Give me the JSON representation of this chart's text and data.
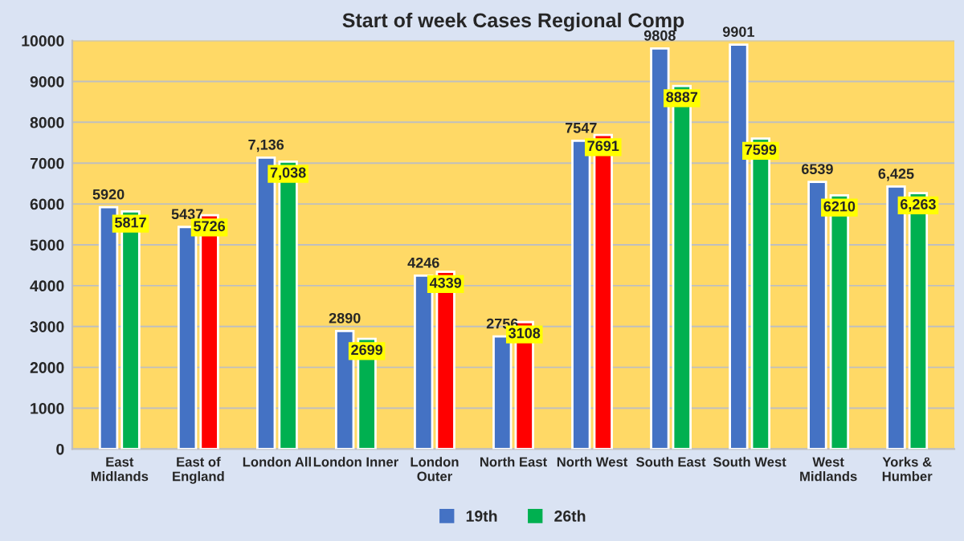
{
  "chart_data": {
    "type": "bar",
    "title": "Start of week Cases Regional Comp",
    "categories": [
      "East\nMidlands",
      "East of\nEngland",
      "London All",
      "London Inner",
      "London\nOuter",
      "North East",
      "North West",
      "South East",
      "South West",
      "West\nMidlands",
      "Yorks &\nHumber"
    ],
    "series": [
      {
        "name": "19th",
        "color": "#4472c4",
        "values": [
          5920,
          5437,
          7136,
          2890,
          4246,
          2756,
          7547,
          9808,
          9901,
          6539,
          6425
        ],
        "value_labels": [
          "5920",
          "5437",
          "7,136",
          "2890",
          "4246",
          "2756",
          "7547",
          "9808",
          "9901",
          "6539",
          "6,425"
        ]
      },
      {
        "name": "26th",
        "color": "#00b050",
        "colors": [
          "#00b050",
          "#ff0000",
          "#00b050",
          "#00b050",
          "#ff0000",
          "#ff0000",
          "#ff0000",
          "#00b050",
          "#00b050",
          "#00b050",
          "#00b050"
        ],
        "values": [
          5817,
          5726,
          7038,
          2699,
          4339,
          3108,
          7691,
          8887,
          7599,
          6210,
          6263
        ],
        "value_labels": [
          "5817",
          "5726",
          "7,038",
          "2699",
          "4339",
          "3108",
          "7691",
          "8887",
          "7599",
          "6210",
          "6,263"
        ]
      }
    ],
    "ylim": [
      0,
      10000
    ],
    "yticks": [
      0,
      1000,
      2000,
      3000,
      4000,
      5000,
      6000,
      7000,
      8000,
      9000,
      10000
    ],
    "grid": "y",
    "legend": "bottom"
  }
}
